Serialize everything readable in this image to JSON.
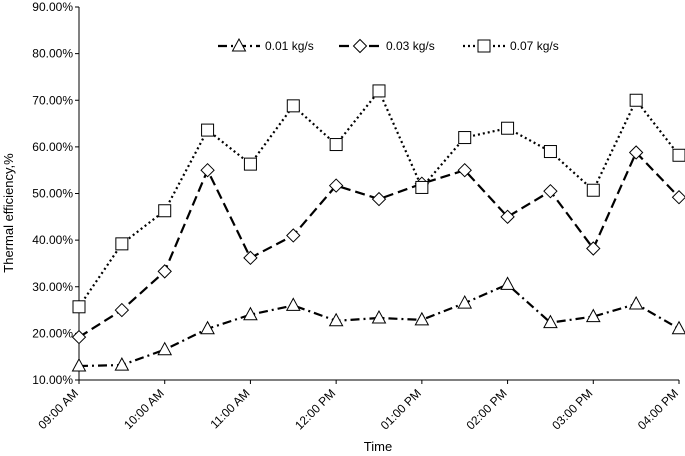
{
  "chart_data": {
    "type": "line",
    "title": "",
    "xlabel": "Time",
    "ylabel": "Thermal efficiency,%",
    "ylim": [
      10,
      90
    ],
    "yticks": [
      "10.00%",
      "20.00%",
      "30.00%",
      "40.00%",
      "50.00%",
      "60.00%",
      "70.00%",
      "80.00%",
      "90.00%"
    ],
    "xticks": [
      "09:00 AM",
      "10:00 AM",
      "11:00 AM",
      "12:00 PM",
      "01:00 PM",
      "02:00 PM",
      "03:00 PM",
      "04:00 PM"
    ],
    "x": [
      9,
      9.5,
      10,
      10.5,
      11,
      11.5,
      12,
      12.5,
      13,
      13.5,
      14,
      14.5,
      15,
      15.5,
      16
    ],
    "xlim": [
      9,
      16
    ],
    "grid": false,
    "legend_position": "top",
    "series": [
      {
        "name": "0.01 kg/s",
        "marker": "triangle",
        "line": "dashdot",
        "values": [
          13.0,
          13.2,
          16.5,
          21.0,
          24.0,
          26.0,
          22.7,
          23.3,
          22.9,
          26.5,
          30.5,
          22.3,
          23.6,
          26.3,
          21.0
        ]
      },
      {
        "name": "0.03 kg/s",
        "marker": "diamond",
        "line": "dashed",
        "values": [
          19.2,
          25.0,
          33.3,
          55.0,
          36.2,
          41.0,
          51.7,
          48.8,
          52.1,
          55.0,
          45.0,
          50.5,
          38.2,
          58.8,
          49.2
        ]
      },
      {
        "name": "0.07 kg/s",
        "marker": "square",
        "line": "dotted",
        "values": [
          25.7,
          39.2,
          46.3,
          63.6,
          56.3,
          68.8,
          60.5,
          72.0,
          51.3,
          62.0,
          64.0,
          59.0,
          50.7,
          70.0,
          58.2
        ]
      }
    ]
  }
}
